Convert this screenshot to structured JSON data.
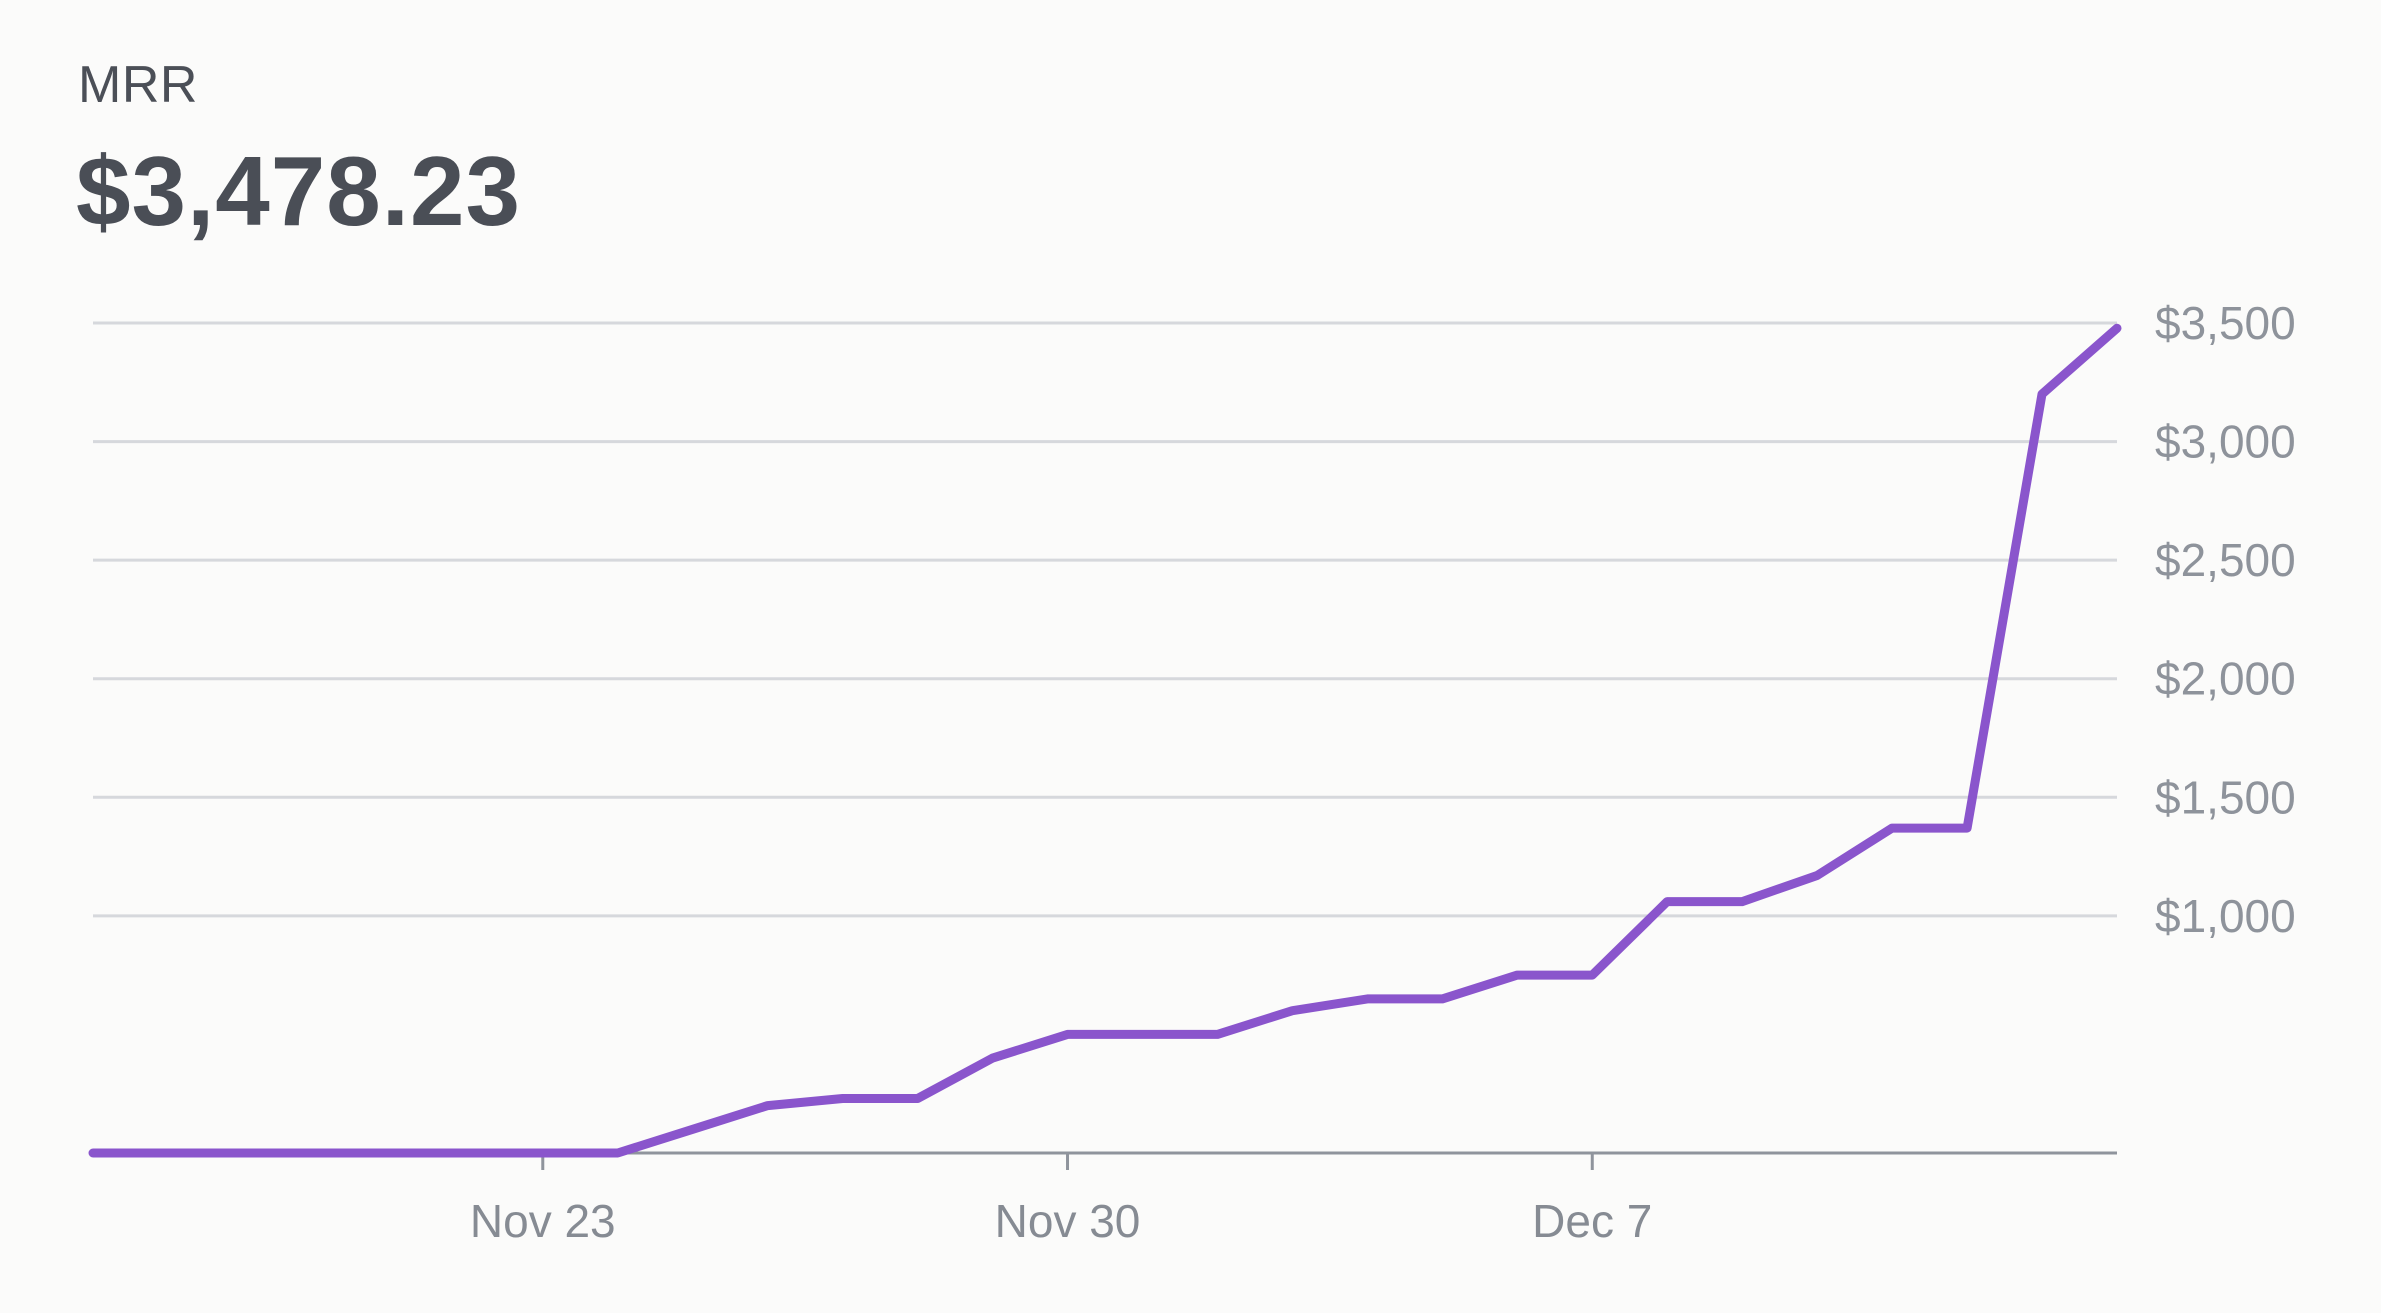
{
  "metric": {
    "label": "MRR",
    "value": "$3,478.23"
  },
  "colors": {
    "line": "#8a55cc",
    "text": "#4a4e56",
    "axis": "#8e939b"
  },
  "chart_data": {
    "type": "line",
    "title": "",
    "xlabel": "",
    "ylabel": "",
    "grid": true,
    "y_axis_position": "right",
    "x": [
      "Nov 17",
      "Nov 18",
      "Nov 19",
      "Nov 20",
      "Nov 21",
      "Nov 22",
      "Nov 23",
      "Nov 24",
      "Nov 25",
      "Nov 26",
      "Nov 27",
      "Nov 28",
      "Nov 29",
      "Nov 30",
      "Dec 1",
      "Dec 2",
      "Dec 3",
      "Dec 4",
      "Dec 5",
      "Dec 6",
      "Dec 7",
      "Dec 8",
      "Dec 9",
      "Dec 10",
      "Dec 11",
      "Dec 12",
      "Dec 13",
      "Dec 14"
    ],
    "series": [
      {
        "values": [
          0,
          0,
          0,
          0,
          0,
          0,
          0,
          0,
          100,
          200,
          230,
          230,
          400,
          500,
          500,
          500,
          600,
          650,
          650,
          750,
          750,
          1060,
          1060,
          1170,
          1370,
          1370,
          3200,
          3478.23
        ]
      }
    ],
    "ylim": [
      0,
      3500
    ],
    "yticks": [
      {
        "value": 1000,
        "label": "$1,000"
      },
      {
        "value": 1500,
        "label": "$1,500"
      },
      {
        "value": 2000,
        "label": "$2,000"
      },
      {
        "value": 2500,
        "label": "$2,500"
      },
      {
        "value": 3000,
        "label": "$3,000"
      },
      {
        "value": 3500,
        "label": "$3,500"
      }
    ],
    "xticks": [
      {
        "x": "Nov 23",
        "label": "Nov 23"
      },
      {
        "x": "Nov 30",
        "label": "Nov 30"
      },
      {
        "x": "Dec 7",
        "label": "Dec 7"
      }
    ]
  }
}
